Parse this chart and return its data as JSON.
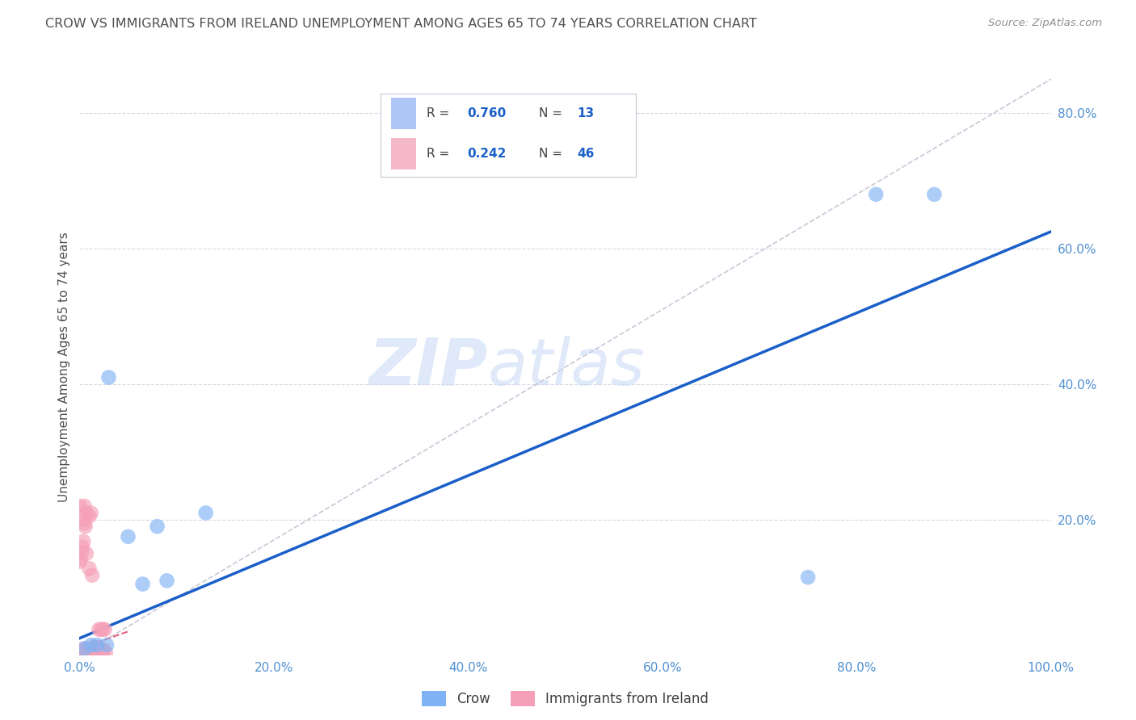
{
  "title": "CROW VS IMMIGRANTS FROM IRELAND UNEMPLOYMENT AMONG AGES 65 TO 74 YEARS CORRELATION CHART",
  "source": "Source: ZipAtlas.com",
  "ylabel": "Unemployment Among Ages 65 to 74 years",
  "xlim": [
    0,
    1.0
  ],
  "ylim": [
    0,
    0.85
  ],
  "xticks": [
    0.0,
    0.2,
    0.4,
    0.6,
    0.8,
    1.0
  ],
  "yticks": [
    0.2,
    0.4,
    0.6,
    0.8
  ],
  "xtick_labels": [
    "0.0%",
    "20.0%",
    "40.0%",
    "60.0%",
    "80.0%",
    "100.0%"
  ],
  "ytick_labels": [
    "20.0%",
    "40.0%",
    "60.0%",
    "80.0%"
  ],
  "crow_scatter_x": [
    0.03,
    0.05,
    0.08,
    0.09,
    0.13,
    0.75,
    0.82,
    0.88,
    0.005,
    0.012,
    0.018,
    0.028,
    0.065
  ],
  "crow_scatter_y": [
    0.41,
    0.175,
    0.19,
    0.11,
    0.21,
    0.115,
    0.68,
    0.68,
    0.01,
    0.015,
    0.015,
    0.015,
    0.105
  ],
  "ireland_scatter_x": [
    0.0,
    0.002,
    0.003,
    0.004,
    0.005,
    0.006,
    0.007,
    0.008,
    0.009,
    0.01,
    0.011,
    0.012,
    0.013,
    0.014,
    0.015,
    0.016,
    0.017,
    0.018,
    0.019,
    0.02,
    0.021,
    0.022,
    0.023,
    0.024,
    0.025,
    0.027,
    0.005,
    0.007,
    0.01,
    0.012,
    0.004,
    0.005,
    0.006,
    0.003,
    0.002,
    0.001,
    0.0,
    0.0,
    0.004,
    0.007,
    0.02,
    0.022,
    0.024,
    0.026,
    0.01,
    0.013
  ],
  "ireland_scatter_y": [
    0.004,
    0.006,
    0.008,
    0.006,
    0.009,
    0.008,
    0.006,
    0.01,
    0.007,
    0.004,
    0.008,
    0.008,
    0.006,
    0.004,
    0.012,
    0.01,
    0.009,
    0.004,
    0.006,
    0.012,
    0.006,
    0.007,
    0.005,
    0.006,
    0.008,
    0.004,
    0.22,
    0.21,
    0.205,
    0.21,
    0.2,
    0.195,
    0.19,
    0.16,
    0.152,
    0.142,
    0.138,
    0.22,
    0.168,
    0.15,
    0.038,
    0.038,
    0.038,
    0.038,
    0.128,
    0.118
  ],
  "crow_line_x": [
    0.0,
    1.0
  ],
  "crow_line_y": [
    0.025,
    0.625
  ],
  "ireland_line_x": [
    0.0,
    0.05
  ],
  "ireland_line_y": [
    0.01,
    0.035
  ],
  "diagonal_line_x": [
    0.0,
    1.0
  ],
  "diagonal_line_y": [
    0.0,
    0.85
  ],
  "scatter_size": 180,
  "crow_color": "#7fb3f5",
  "ireland_color": "#f5a0b8",
  "crow_line_color": "#1a5fc8",
  "ireland_line_color": "#e06080",
  "diagonal_color": "#c8c8d8",
  "watermark_zip": "ZIP",
  "watermark_atlas": "atlas",
  "background_color": "#ffffff",
  "title_color": "#505050",
  "axis_label_color": "#505050",
  "tick_color": "#5090d0",
  "legend_blue_color": "#aec6f5",
  "legend_pink_color": "#f5b8c8",
  "legend_text_color": "#1a5fc8",
  "legend_label_color": "#404040"
}
